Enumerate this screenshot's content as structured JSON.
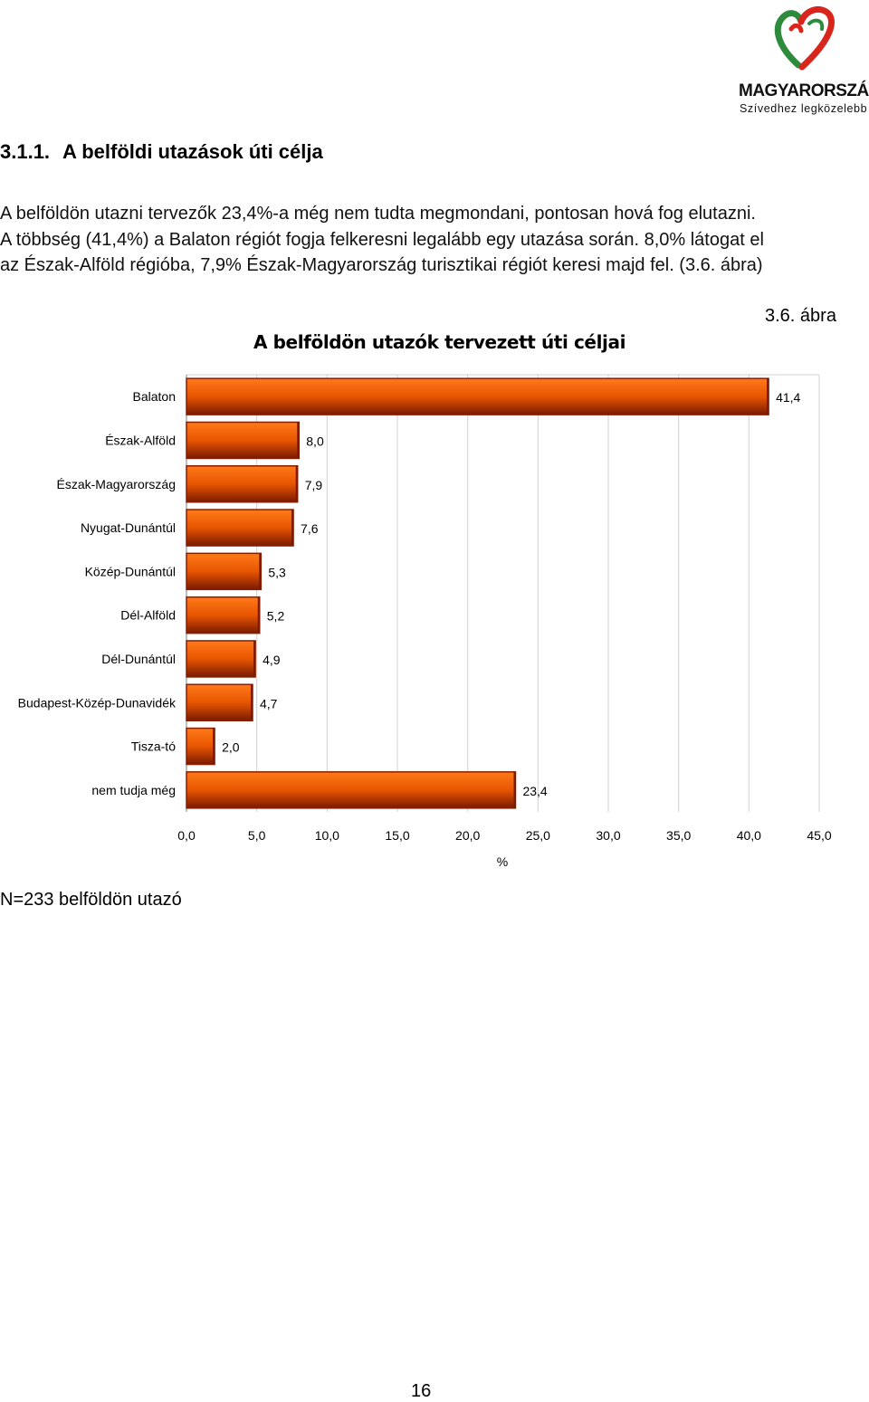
{
  "logo": {
    "name": "MAGYARORSZÁG",
    "tagline": "Szívedhez legközelebb",
    "colors": {
      "red": "#d9261c",
      "green": "#2e8b3e"
    }
  },
  "section": {
    "number": "3.1.1.",
    "title": "A belföldi utazások úti célja"
  },
  "paragraph": {
    "line1": "A belföldön utazni tervezők 23,4%-a még nem tudta megmondani, pontosan hová fog elutazni.",
    "line2": "A többség (41,4%) a Balaton régiót fogja felkeresni legalább egy utazása során. 8,0% látogat el",
    "line3": "az Észak-Alföld régióba, 7,9% Észak-Magyarország turisztikai régiót keresi majd fel. (3.6. ábra)"
  },
  "figure_ref": "3.6. ábra",
  "chart_data": {
    "type": "bar",
    "orientation": "horizontal",
    "title": "A belföldön utazók tervezett úti céljai",
    "xlabel": "%",
    "ylabel": "",
    "categories": [
      "Balaton",
      "Észak-Alföld",
      "Észak-Magyarország",
      "Nyugat-Dunántúl",
      "Közép-Dunántúl",
      "Dél-Alföld",
      "Dél-Dunántúl",
      "Budapest-Közép-Dunavidék",
      "Tisza-tó",
      "nem tudja még"
    ],
    "values": [
      41.4,
      8.0,
      7.9,
      7.6,
      5.3,
      5.2,
      4.9,
      4.7,
      2.0,
      23.4
    ],
    "value_labels": [
      "41,4",
      "8,0",
      "7,9",
      "7,6",
      "5,3",
      "5,2",
      "4,9",
      "4,7",
      "2,0",
      "23,4"
    ],
    "xlim": [
      0,
      45
    ],
    "xticks": [
      0,
      5,
      10,
      15,
      20,
      25,
      30,
      35,
      40,
      45
    ],
    "xtick_labels": [
      "0,0",
      "5,0",
      "10,0",
      "15,0",
      "20,0",
      "25,0",
      "30,0",
      "35,0",
      "40,0",
      "45,0"
    ],
    "grid": true,
    "legend": "none",
    "colors": {
      "bar_edge": "#8a1e00",
      "bar_light": "#ff7a1a",
      "bar_mid": "#e85500",
      "bar_dark": "#7a1a00",
      "grid": "#d0d0d0",
      "axis": "#808080"
    }
  },
  "footnote": "N=233 belföldön utazó",
  "page_number": "16"
}
